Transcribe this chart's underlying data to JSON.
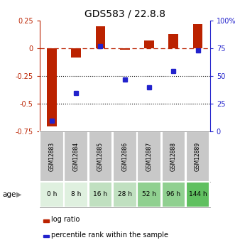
{
  "title": "GDS583 / 22.8.8",
  "categories": [
    "GSM12883",
    "GSM12884",
    "GSM12885",
    "GSM12886",
    "GSM12887",
    "GSM12888",
    "GSM12889"
  ],
  "age_labels": [
    "0 h",
    "8 h",
    "16 h",
    "28 h",
    "52 h",
    "96 h",
    "144 h"
  ],
  "age_colors": [
    "#dff0df",
    "#dff0df",
    "#c0e0c0",
    "#c0e0c0",
    "#90d090",
    "#90d090",
    "#60c060"
  ],
  "log_ratio": [
    -0.7,
    -0.08,
    0.2,
    -0.01,
    0.07,
    0.13,
    0.22
  ],
  "percentile_rank": [
    10,
    35,
    77,
    47,
    40,
    55,
    73
  ],
  "bar_color": "#bb2200",
  "dot_color": "#2222cc",
  "ylim_left": [
    -0.75,
    0.25
  ],
  "ylim_right": [
    0,
    100
  ],
  "yticks_left": [
    -0.75,
    -0.5,
    -0.25,
    0,
    0.25
  ],
  "yticks_right": [
    0,
    25,
    50,
    75,
    100
  ],
  "ytick_labels_right": [
    "0",
    "25",
    "50",
    "75",
    "100%"
  ],
  "dotted_lines": [
    -0.25,
    -0.5
  ],
  "legend_log_ratio": "log ratio",
  "legend_percentile": "percentile rank within the sample",
  "gsm_box_color": "#c8c8c8",
  "bar_width": 0.4
}
